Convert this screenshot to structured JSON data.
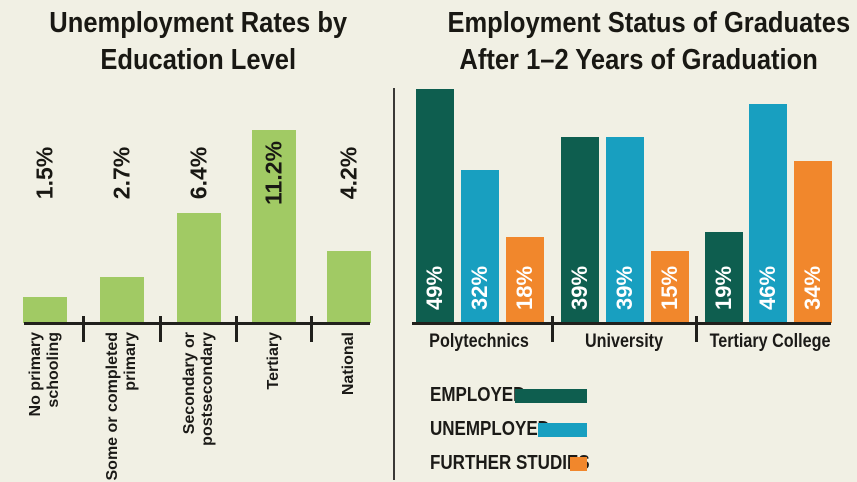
{
  "page": {
    "background_color": "#f1f0e4",
    "ink_color": "#1b1a17"
  },
  "chart_data": [
    {
      "type": "bar",
      "title": "Unemployment Rates by Education Level",
      "title_lines": [
        "Unemployment Rates by",
        "Education Level"
      ],
      "categories": [
        "No primary schooling",
        "Some or completed primary",
        "Secondary or postsecondary",
        "Tertiary",
        "National"
      ],
      "category_lines": [
        [
          "No primary",
          "schooling"
        ],
        [
          "Some or completed",
          "primary"
        ],
        [
          "Secondary or",
          "postsecondary"
        ],
        [
          "Tertiary"
        ],
        [
          "National"
        ]
      ],
      "values": [
        1.5,
        2.7,
        6.4,
        11.2,
        4.2
      ],
      "value_labels": [
        "1.5%",
        "2.7%",
        "6.4%",
        "11.2%",
        "4.2%"
      ],
      "bar_color": "#a1ca64",
      "xlabel": "",
      "ylabel": "",
      "ylim": [
        0,
        12
      ],
      "grid": false,
      "legend": false
    },
    {
      "type": "bar",
      "title": "Employment Status of Graduates After 1–2 Years of Graduation",
      "title_lines": [
        "Employment Status of Graduates",
        "After 1–2 Years of Graduation"
      ],
      "categories": [
        "Polytechnics",
        "University",
        "Tertiary College"
      ],
      "series": [
        {
          "name": "EMPLOYED",
          "color": "#0e5e4f",
          "values": [
            49,
            39,
            19
          ],
          "value_labels": [
            "49%",
            "39%",
            "19%"
          ]
        },
        {
          "name": "UNEMPLOYED",
          "color": "#189fc0",
          "values": [
            32,
            39,
            46
          ],
          "value_labels": [
            "32%",
            "39%",
            "46%"
          ]
        },
        {
          "name": "FURTHER STUDIES",
          "color": "#f1872c",
          "values": [
            18,
            15,
            34
          ],
          "value_labels": [
            "18%",
            "15%",
            "34%"
          ]
        }
      ],
      "xlabel": "",
      "ylabel": "",
      "ylim": [
        0,
        50
      ],
      "grid": false,
      "legend_position": "bottom-left"
    }
  ]
}
